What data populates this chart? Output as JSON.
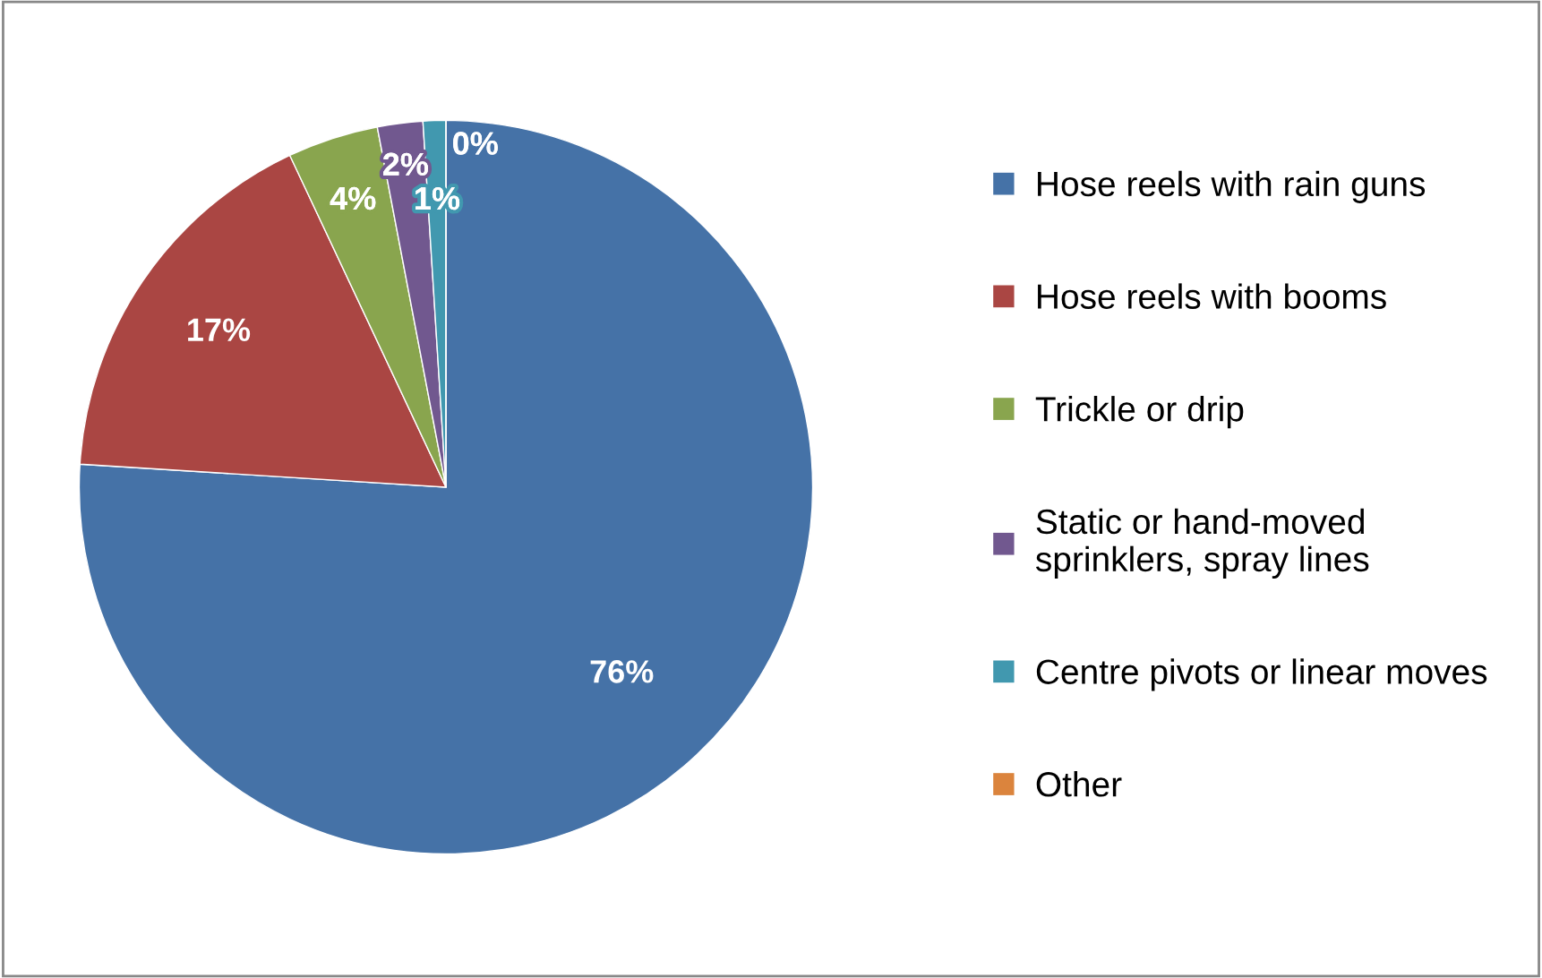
{
  "chart_data": {
    "type": "pie",
    "categories": [
      "Hose reels with rain guns",
      "Hose reels with booms",
      "Trickle or drip",
      "Static or hand-moved\nsprinklers, spray lines",
      "Centre pivots or linear moves",
      "Other"
    ],
    "values": [
      76,
      17,
      4,
      2,
      1,
      0
    ],
    "colors": [
      "#4572a7",
      "#aa4643",
      "#89a54e",
      "#71588f",
      "#4198af",
      "#db843d"
    ],
    "value_labels": [
      "76%",
      "17%",
      "4%",
      "2%",
      "1%",
      "0%"
    ],
    "legend": "right"
  }
}
